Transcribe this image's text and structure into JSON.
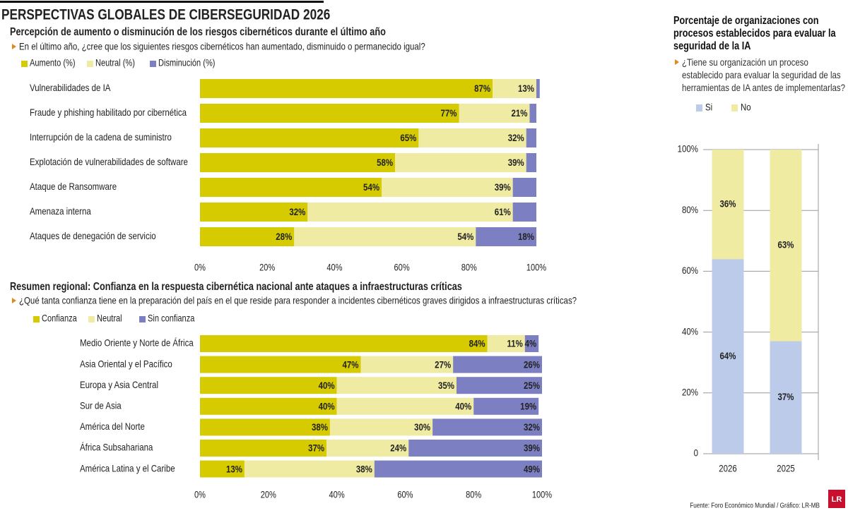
{
  "title": "PERSPECTIVAS GLOBALES DE CIBERSEGURIDAD 2026",
  "source": "Fuente:  Foro Económico Mundial  / Gráfico: LR-MB",
  "logo": "LR",
  "chart_data": [
    {
      "type": "bar",
      "orientation": "horizontal",
      "stacked": true,
      "grid": false,
      "title": "Percepción de aumento o disminución de los riesgos cibernéticos durante el último año",
      "subtitle": "En el último año, ¿cree que los siguientes riesgos cibernéticos han aumentado, disminuido o permanecido igual?",
      "categories": [
        "Vulnerabilidades de IA",
        "Fraude y phishing habilitado por cibernética",
        "Interrupción de la cadena de suministro",
        "Explotación de vulnerabilidades de software",
        "Ataque de Ransomware",
        "Amenaza interna",
        "Ataques de denegación de servicio"
      ],
      "series": [
        {
          "name": "Aumento (%)",
          "color": "#d5cb00",
          "values": [
            87,
            77,
            65,
            58,
            54,
            32,
            28
          ],
          "value_labels": [
            "87%",
            "77%",
            "65%",
            "58%",
            "54%",
            "32%",
            "28%"
          ]
        },
        {
          "name": "Neutral (%)",
          "color": "#efeba3",
          "values": [
            13,
            21,
            32,
            39,
            39,
            61,
            54
          ],
          "value_labels": [
            "13%",
            "21%",
            "32%",
            "39%",
            "39%",
            "61%",
            "54%"
          ]
        },
        {
          "name": "Disminución (%)",
          "color": "#7c80c2",
          "values": [
            1,
            2,
            3,
            3,
            7,
            7,
            18
          ],
          "value_labels": [
            null,
            null,
            null,
            null,
            null,
            null,
            "18%"
          ]
        }
      ],
      "xlim": [
        0,
        100
      ],
      "xticks": [
        {
          "value": 0,
          "label": "0%"
        },
        {
          "value": 20,
          "label": "20%"
        },
        {
          "value": 40,
          "label": "40%"
        },
        {
          "value": 60,
          "label": "60%"
        },
        {
          "value": 80,
          "label": "80%"
        },
        {
          "value": 100,
          "label": "100%"
        }
      ]
    },
    {
      "type": "bar",
      "orientation": "horizontal",
      "stacked": true,
      "grid": false,
      "title": "Resumen regional: Confianza en la respuesta cibernética nacional ante ataques a infraestructuras críticas",
      "subtitle": "¿Qué tanta confianza tiene en la preparación del país en el que reside para responder a incidentes cibernéticos graves dirigidos a infraestructuras críticas?",
      "categories": [
        "Medio Oriente y Norte de África",
        "Asia Oriental y el Pacífico",
        "Europa y Asia Central",
        "Sur de Asia",
        "América del Norte",
        "África Subsahariana",
        "América Latina y el Caribe"
      ],
      "series": [
        {
          "name": "Confianza",
          "color": "#d5cb00",
          "values": [
            84,
            47,
            40,
            40,
            38,
            37,
            13
          ],
          "value_labels": [
            "84%",
            "47%",
            "40%",
            "40%",
            "38%",
            "37%",
            "13%"
          ]
        },
        {
          "name": "Neutral",
          "color": "#efeba3",
          "values": [
            11,
            27,
            35,
            40,
            30,
            24,
            38
          ],
          "value_labels": [
            "11%",
            "27%",
            "35%",
            "40%",
            "30%",
            "24%",
            "38%"
          ]
        },
        {
          "name": "Sin confianza",
          "color": "#7c80c2",
          "values": [
            4,
            26,
            25,
            19,
            32,
            39,
            49
          ],
          "value_labels": [
            "4%",
            "26%",
            "25%",
            "19%",
            "32%",
            "39%",
            "49%"
          ]
        }
      ],
      "xlim": [
        0,
        100
      ],
      "xticks": [
        {
          "value": 0,
          "label": "0%"
        },
        {
          "value": 20,
          "label": "20%"
        },
        {
          "value": 40,
          "label": "40%"
        },
        {
          "value": 60,
          "label": "60%"
        },
        {
          "value": 80,
          "label": "80%"
        },
        {
          "value": 100,
          "label": "100%"
        }
      ]
    },
    {
      "type": "bar",
      "orientation": "vertical",
      "stacked": true,
      "grid": true,
      "title": "Porcentaje de organizaciones con procesos establecidos para evaluar la seguridad de la IA",
      "subtitle": "¿Tiene su organización un proceso establecido para evaluar la seguridad de las herramientas de IA antes de implementarlas?",
      "categories": [
        "2026",
        "2025"
      ],
      "series": [
        {
          "name": "Si",
          "color": "#bccbe9",
          "values": [
            64,
            37
          ],
          "value_labels": [
            "64%",
            "37%"
          ]
        },
        {
          "name": "No",
          "color": "#efeba3",
          "values": [
            36,
            63
          ],
          "value_labels": [
            "36%",
            "63%"
          ]
        }
      ],
      "ylim": [
        0,
        100
      ],
      "yticks": [
        0,
        {
          "value": 20,
          "label": "20%"
        },
        {
          "value": 40,
          "label": "40%"
        },
        {
          "value": 60,
          "label": "60%"
        },
        {
          "value": 80,
          "label": "80%"
        },
        {
          "value": 100,
          "label": "100%"
        }
      ]
    }
  ]
}
